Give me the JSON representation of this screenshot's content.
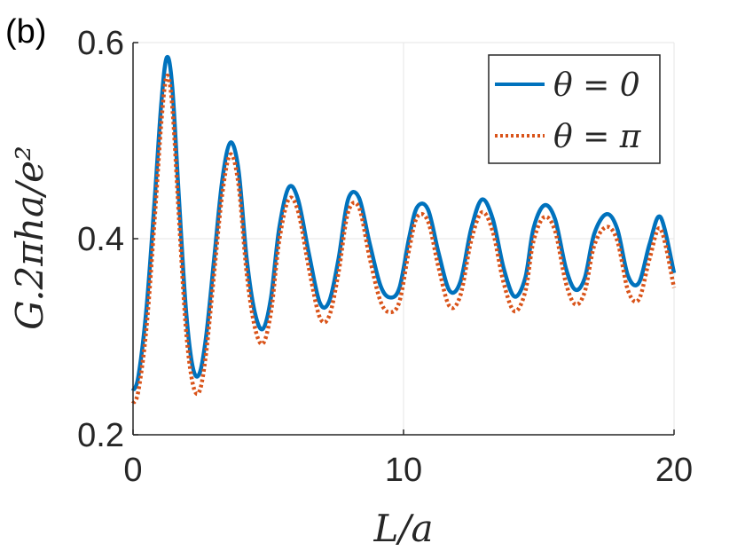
{
  "panel_label": "(b)",
  "colors": {
    "series0": "#0072BD",
    "series1": "#D95319",
    "axis": "#262626",
    "grid": "#e6e6e6"
  },
  "chart_data": {
    "type": "line",
    "xlabel": "L/a",
    "ylabel": "G.2πha/e²",
    "xlim": [
      0,
      20
    ],
    "ylim": [
      0.2,
      0.6
    ],
    "xticks": [
      0,
      10,
      20
    ],
    "xtick_labels": [
      "0",
      "10",
      "20"
    ],
    "yticks": [
      0.2,
      0.4,
      0.6
    ],
    "ytick_labels": [
      "0.2",
      "0.4",
      "0.6"
    ],
    "grid": true,
    "legend_position": "top-right",
    "series": [
      {
        "name": "θ = 0",
        "style": "solid",
        "x": [
          0,
          0.2,
          0.5,
          0.8,
          1.05,
          1.25,
          1.45,
          1.7,
          1.95,
          2.2,
          2.45,
          2.7,
          3.0,
          3.3,
          3.6,
          3.9,
          4.2,
          4.5,
          4.8,
          5.1,
          5.4,
          5.75,
          6.1,
          6.5,
          6.9,
          7.25,
          7.6,
          7.95,
          8.35,
          8.75,
          9.15,
          9.5,
          9.85,
          10.2,
          10.5,
          10.9,
          11.3,
          11.7,
          12.1,
          12.5,
          12.9,
          13.3,
          13.7,
          14.1,
          14.5,
          14.8,
          15.2,
          15.6,
          16.0,
          16.35,
          16.7,
          17.05,
          17.5,
          17.9,
          18.3,
          18.7,
          19.1,
          19.5,
          20.0
        ],
        "y": [
          0.245,
          0.26,
          0.33,
          0.44,
          0.54,
          0.585,
          0.555,
          0.44,
          0.33,
          0.27,
          0.262,
          0.3,
          0.38,
          0.46,
          0.498,
          0.47,
          0.38,
          0.325,
          0.308,
          0.34,
          0.41,
          0.452,
          0.44,
          0.385,
          0.335,
          0.336,
          0.38,
          0.44,
          0.442,
          0.395,
          0.352,
          0.34,
          0.35,
          0.4,
          0.432,
          0.43,
          0.385,
          0.347,
          0.356,
          0.41,
          0.44,
          0.42,
          0.37,
          0.341,
          0.36,
          0.41,
          0.434,
          0.42,
          0.37,
          0.348,
          0.36,
          0.405,
          0.425,
          0.41,
          0.362,
          0.355,
          0.395,
          0.422,
          0.365
        ]
      },
      {
        "name": "θ = π",
        "style": "dotted",
        "x": [
          0,
          0.2,
          0.5,
          0.8,
          1.05,
          1.25,
          1.45,
          1.7,
          1.95,
          2.2,
          2.45,
          2.7,
          3.0,
          3.3,
          3.6,
          3.9,
          4.2,
          4.5,
          4.8,
          5.1,
          5.4,
          5.75,
          6.1,
          6.5,
          6.9,
          7.25,
          7.6,
          7.95,
          8.35,
          8.75,
          9.15,
          9.5,
          9.85,
          10.2,
          10.5,
          10.9,
          11.3,
          11.7,
          12.1,
          12.5,
          12.9,
          13.3,
          13.7,
          14.1,
          14.5,
          14.8,
          15.2,
          15.6,
          16.0,
          16.35,
          16.7,
          17.05,
          17.5,
          17.9,
          18.3,
          18.7,
          19.1,
          19.5,
          20.0
        ],
        "y": [
          0.232,
          0.245,
          0.31,
          0.42,
          0.52,
          0.566,
          0.535,
          0.42,
          0.31,
          0.253,
          0.244,
          0.283,
          0.365,
          0.446,
          0.486,
          0.455,
          0.365,
          0.31,
          0.293,
          0.325,
          0.397,
          0.44,
          0.428,
          0.37,
          0.32,
          0.321,
          0.366,
          0.427,
          0.432,
          0.38,
          0.336,
          0.325,
          0.336,
          0.388,
          0.422,
          0.418,
          0.37,
          0.331,
          0.342,
          0.398,
          0.427,
          0.407,
          0.355,
          0.326,
          0.346,
          0.397,
          0.422,
          0.408,
          0.355,
          0.333,
          0.346,
          0.393,
          0.412,
          0.398,
          0.347,
          0.338,
          0.38,
          0.41,
          0.35
        ]
      }
    ]
  }
}
